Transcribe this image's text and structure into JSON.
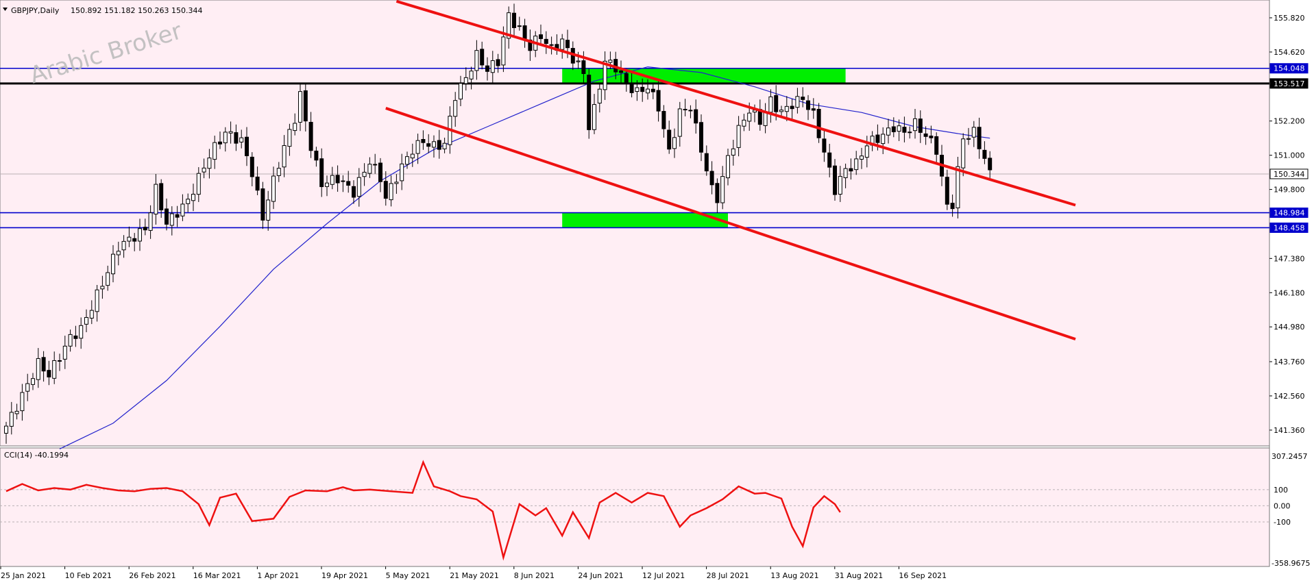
{
  "header": {
    "symbol": "GBPJPY,Daily",
    "ohlc": "150.892 151.182 150.263 150.344"
  },
  "watermark": "Arabic Broker",
  "indicator": {
    "label": "CCI(14) -40.1994",
    "top_label": "307.2457",
    "bottom_label": "-358.9675",
    "levels": [
      "100",
      "0.00",
      "-100"
    ]
  },
  "colors": {
    "background": "#ffeef4",
    "bull_candle": "#ffffff",
    "bear_candle": "#000000",
    "moving_average": "#2222cc",
    "channel": "#ee1111",
    "zone": "#00ee00",
    "level_line": "#0000cc",
    "resistance_line": "#000000",
    "cci": "#ee1111"
  },
  "chart_data": {
    "type": "candlestick",
    "symbol": "GBPJPY",
    "timeframe": "Daily",
    "y_ticks": [
      "155.820",
      "154.620",
      "152.200",
      "151.000",
      "149.800",
      "147.380",
      "146.180",
      "144.980",
      "143.760",
      "142.560",
      "141.360"
    ],
    "x_ticks": [
      "25 Jan 2021",
      "10 Feb 2021",
      "26 Feb 2021",
      "16 Mar 2021",
      "1 Apr 2021",
      "19 Apr 2021",
      "5 May 2021",
      "21 May 2021",
      "8 Jun 2021",
      "24 Jun 2021",
      "12 Jul 2021",
      "28 Jul 2021",
      "13 Aug 2021",
      "31 Aug 2021",
      "16 Sep 2021"
    ],
    "ylim": [
      140.95,
      156.3
    ],
    "price_labels": [
      {
        "value": 154.048,
        "text": "154.048",
        "kind": "level"
      },
      {
        "value": 153.517,
        "text": "153.517",
        "kind": "resistance"
      },
      {
        "value": 148.984,
        "text": "148.984",
        "kind": "level"
      },
      {
        "value": 148.458,
        "text": "148.458",
        "kind": "level"
      },
      {
        "value": 150.344,
        "text": "150.344",
        "kind": "current"
      }
    ],
    "anchors": [
      {
        "i": 0,
        "c": 141.5
      },
      {
        "i": 2,
        "c": 142.2
      },
      {
        "i": 6,
        "c": 143.7
      },
      {
        "i": 8,
        "c": 143.3
      },
      {
        "i": 12,
        "c": 144.6
      },
      {
        "i": 14,
        "c": 144.9
      },
      {
        "i": 18,
        "c": 146.5
      },
      {
        "i": 21,
        "c": 147.8
      },
      {
        "i": 26,
        "c": 148.4
      },
      {
        "i": 28,
        "c": 149.8
      },
      {
        "i": 30,
        "c": 148.6
      },
      {
        "i": 34,
        "c": 149.4
      },
      {
        "i": 38,
        "c": 151.0
      },
      {
        "i": 41,
        "c": 151.8
      },
      {
        "i": 44,
        "c": 151.5
      },
      {
        "i": 46,
        "c": 150.4
      },
      {
        "i": 48,
        "c": 148.8
      },
      {
        "i": 49,
        "c": 149.5
      },
      {
        "i": 52,
        "c": 151.3
      },
      {
        "i": 54,
        "c": 152.3
      },
      {
        "i": 55,
        "c": 153.1
      },
      {
        "i": 57,
        "c": 151.3
      },
      {
        "i": 59,
        "c": 150.0
      },
      {
        "i": 62,
        "c": 150.2
      },
      {
        "i": 65,
        "c": 149.7
      },
      {
        "i": 68,
        "c": 150.8
      },
      {
        "i": 70,
        "c": 150.2
      },
      {
        "i": 71,
        "c": 149.5
      },
      {
        "i": 74,
        "c": 150.6
      },
      {
        "i": 76,
        "c": 151.2
      },
      {
        "i": 78,
        "c": 151.5
      },
      {
        "i": 80,
        "c": 151.3
      },
      {
        "i": 82,
        "c": 151.4
      },
      {
        "i": 84,
        "c": 153.1
      },
      {
        "i": 86,
        "c": 153.7
      },
      {
        "i": 88,
        "c": 154.5
      },
      {
        "i": 90,
        "c": 154.0
      },
      {
        "i": 92,
        "c": 154.3
      },
      {
        "i": 94,
        "c": 155.9
      },
      {
        "i": 96,
        "c": 155.4
      },
      {
        "i": 98,
        "c": 154.8
      },
      {
        "i": 100,
        "c": 155.2
      },
      {
        "i": 102,
        "c": 154.7
      },
      {
        "i": 104,
        "c": 155.0
      },
      {
        "i": 106,
        "c": 154.4
      },
      {
        "i": 108,
        "c": 153.9
      },
      {
        "i": 109,
        "c": 152.0
      },
      {
        "i": 110,
        "c": 152.6
      },
      {
        "i": 112,
        "c": 154.3
      },
      {
        "i": 114,
        "c": 154.1
      },
      {
        "i": 116,
        "c": 153.5
      },
      {
        "i": 118,
        "c": 153.2
      },
      {
        "i": 120,
        "c": 153.4
      },
      {
        "i": 122,
        "c": 152.7
      },
      {
        "i": 124,
        "c": 151.1
      },
      {
        "i": 126,
        "c": 152.5
      },
      {
        "i": 128,
        "c": 152.7
      },
      {
        "i": 130,
        "c": 151.2
      },
      {
        "i": 132,
        "c": 149.8
      },
      {
        "i": 133,
        "c": 149.5
      },
      {
        "i": 135,
        "c": 150.9
      },
      {
        "i": 137,
        "c": 151.9
      },
      {
        "i": 139,
        "c": 152.6
      },
      {
        "i": 141,
        "c": 152.2
      },
      {
        "i": 143,
        "c": 152.9
      },
      {
        "i": 145,
        "c": 152.5
      },
      {
        "i": 147,
        "c": 152.8
      },
      {
        "i": 149,
        "c": 153.0
      },
      {
        "i": 151,
        "c": 152.4
      },
      {
        "i": 153,
        "c": 151.1
      },
      {
        "i": 155,
        "c": 149.8
      },
      {
        "i": 157,
        "c": 150.5
      },
      {
        "i": 159,
        "c": 150.7
      },
      {
        "i": 161,
        "c": 151.4
      },
      {
        "i": 164,
        "c": 151.7
      },
      {
        "i": 166,
        "c": 152.0
      },
      {
        "i": 168,
        "c": 151.8
      },
      {
        "i": 170,
        "c": 152.1
      },
      {
        "i": 172,
        "c": 151.7
      },
      {
        "i": 174,
        "c": 151.2
      },
      {
        "i": 176,
        "c": 149.2
      },
      {
        "i": 177,
        "c": 149.3
      },
      {
        "i": 179,
        "c": 151.6
      },
      {
        "i": 181,
        "c": 151.8
      },
      {
        "i": 183,
        "c": 150.9
      },
      {
        "i": 184,
        "c": 150.344
      }
    ],
    "moving_average": [
      {
        "i": 10,
        "v": 140.7
      },
      {
        "i": 20,
        "v": 141.6
      },
      {
        "i": 30,
        "v": 143.1
      },
      {
        "i": 40,
        "v": 145.0
      },
      {
        "i": 50,
        "v": 147.0
      },
      {
        "i": 60,
        "v": 148.6
      },
      {
        "i": 70,
        "v": 150.1
      },
      {
        "i": 80,
        "v": 151.2
      },
      {
        "i": 90,
        "v": 152.0
      },
      {
        "i": 100,
        "v": 152.8
      },
      {
        "i": 110,
        "v": 153.6
      },
      {
        "i": 120,
        "v": 154.1
      },
      {
        "i": 130,
        "v": 153.9
      },
      {
        "i": 140,
        "v": 153.4
      },
      {
        "i": 150,
        "v": 152.8
      },
      {
        "i": 160,
        "v": 152.5
      },
      {
        "i": 170,
        "v": 152.0
      },
      {
        "i": 180,
        "v": 151.7
      },
      {
        "i": 184,
        "v": 151.6
      }
    ],
    "cci": [
      {
        "i": 0,
        "v": 90
      },
      {
        "i": 3,
        "v": 135
      },
      {
        "i": 6,
        "v": 95
      },
      {
        "i": 9,
        "v": 110
      },
      {
        "i": 12,
        "v": 100
      },
      {
        "i": 15,
        "v": 130
      },
      {
        "i": 18,
        "v": 110
      },
      {
        "i": 21,
        "v": 95
      },
      {
        "i": 24,
        "v": 90
      },
      {
        "i": 27,
        "v": 105
      },
      {
        "i": 30,
        "v": 110
      },
      {
        "i": 33,
        "v": 90
      },
      {
        "i": 36,
        "v": 10
      },
      {
        "i": 38,
        "v": -120
      },
      {
        "i": 40,
        "v": 50
      },
      {
        "i": 43,
        "v": 75
      },
      {
        "i": 46,
        "v": -95
      },
      {
        "i": 50,
        "v": -80
      },
      {
        "i": 53,
        "v": 55
      },
      {
        "i": 56,
        "v": 95
      },
      {
        "i": 60,
        "v": 90
      },
      {
        "i": 63,
        "v": 115
      },
      {
        "i": 65,
        "v": 95
      },
      {
        "i": 68,
        "v": 100
      },
      {
        "i": 72,
        "v": 90
      },
      {
        "i": 76,
        "v": 80
      },
      {
        "i": 78,
        "v": 270
      },
      {
        "i": 80,
        "v": 120
      },
      {
        "i": 83,
        "v": 90
      },
      {
        "i": 85,
        "v": 60
      },
      {
        "i": 88,
        "v": 40
      },
      {
        "i": 91,
        "v": -35
      },
      {
        "i": 93,
        "v": -320
      },
      {
        "i": 96,
        "v": 10
      },
      {
        "i": 99,
        "v": -60
      },
      {
        "i": 101,
        "v": -15
      },
      {
        "i": 104,
        "v": -185
      },
      {
        "i": 106,
        "v": -40
      },
      {
        "i": 109,
        "v": -200
      },
      {
        "i": 111,
        "v": 20
      },
      {
        "i": 114,
        "v": 80
      },
      {
        "i": 117,
        "v": 20
      },
      {
        "i": 120,
        "v": 80
      },
      {
        "i": 123,
        "v": 60
      },
      {
        "i": 126,
        "v": -130
      },
      {
        "i": 128,
        "v": -60
      },
      {
        "i": 131,
        "v": -15
      },
      {
        "i": 134,
        "v": 40
      },
      {
        "i": 137,
        "v": 120
      },
      {
        "i": 140,
        "v": 75
      },
      {
        "i": 142,
        "v": 80
      },
      {
        "i": 145,
        "v": 45
      },
      {
        "i": 147,
        "v": -130
      },
      {
        "i": 149,
        "v": -250
      },
      {
        "i": 151,
        "v": -10
      },
      {
        "i": 153,
        "v": 60
      },
      {
        "i": 155,
        "v": 10
      },
      {
        "i": 156,
        "v": -40
      }
    ],
    "channel": {
      "upper": [
        {
          "i": 73,
          "v": 156.4
        },
        {
          "i": 200,
          "v": 149.25
        }
      ],
      "lower": [
        {
          "i": 71,
          "v": 152.65
        },
        {
          "i": 200,
          "v": 144.55
        }
      ]
    },
    "zones": [
      {
        "from": 104,
        "to": 157,
        "bottom": 153.517,
        "top": 154.048
      },
      {
        "from": 104,
        "to": 135,
        "bottom": 148.458,
        "top": 148.984
      }
    ],
    "levels": [
      154.048,
      153.517,
      148.984,
      148.458
    ],
    "grid": false,
    "legend": "none"
  }
}
